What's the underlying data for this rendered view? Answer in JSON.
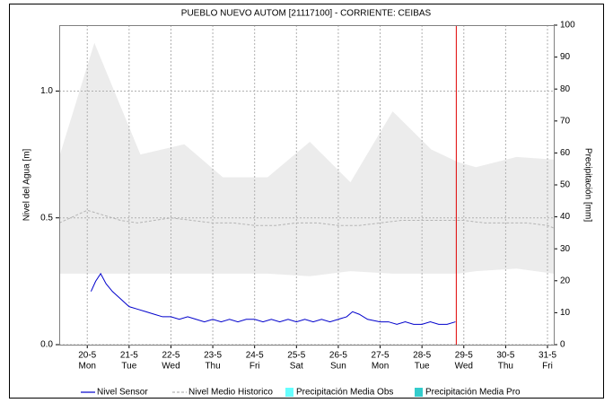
{
  "chart_data": {
    "type": "line",
    "title": "PUEBLO NUEVO AUTOM [21117100] - CORRIENTE: CEIBAS",
    "ylabel": "Nivel del Agua [m]",
    "y2label": "Precipitación [mm]",
    "xlim": [
      19.33,
      31.15
    ],
    "xticks": [
      {
        "value": 20,
        "label": "20-5"
      },
      {
        "value": 21,
        "label": "21-5"
      },
      {
        "value": 22,
        "label": "22-5"
      },
      {
        "value": 23,
        "label": "23-5"
      },
      {
        "value": 24,
        "label": "24-5"
      },
      {
        "value": 25,
        "label": "25-5"
      },
      {
        "value": 26,
        "label": "26-5"
      },
      {
        "value": 27,
        "label": "27-5"
      },
      {
        "value": 28,
        "label": "28-5"
      },
      {
        "value": 29,
        "label": "29-5"
      },
      {
        "value": 30,
        "label": "30-5"
      },
      {
        "value": 31,
        "label": "31-5"
      }
    ],
    "weekdays": [
      "Mon",
      "Tue",
      "Wed",
      "Thu",
      "Fri",
      "Sat",
      "Sun",
      "Mon",
      "Tue",
      "Wed",
      "Thu",
      "Fri"
    ],
    "ylim": [
      0,
      1.26
    ],
    "yticks": [
      {
        "value": 0,
        "label": "0.0"
      },
      {
        "value": 0.5,
        "label": "0.5"
      },
      {
        "value": 1,
        "label": "1.0"
      }
    ],
    "y2lim": [
      0,
      100
    ],
    "y2ticks": [
      0,
      10,
      20,
      30,
      40,
      50,
      60,
      70,
      80,
      90,
      100
    ],
    "grid": true,
    "vline": {
      "x": 28.82,
      "color": "#e00000"
    },
    "band": {
      "color": "#ececec",
      "x": [
        19.33,
        20.17,
        21.27,
        22.32,
        23.24,
        24.31,
        25.32,
        26.29,
        27.3,
        28.22,
        28.86,
        29.29,
        30.26,
        31.15
      ],
      "upper": [
        0.74,
        1.19,
        0.75,
        0.79,
        0.66,
        0.66,
        0.8,
        0.64,
        0.92,
        0.77,
        0.72,
        0.7,
        0.74,
        0.73
      ],
      "lower": [
        0.28,
        0.28,
        0.28,
        0.28,
        0.28,
        0.28,
        0.27,
        0.29,
        0.28,
        0.28,
        0.28,
        0.29,
        0.3,
        0.28
      ]
    },
    "series": [
      {
        "name": "Nivel Sensor",
        "color": "#0000cc",
        "style": "solid",
        "x": [
          20.09,
          20.2,
          20.32,
          20.45,
          20.6,
          20.8,
          21.0,
          21.2,
          21.4,
          21.6,
          21.8,
          22.0,
          22.2,
          22.4,
          22.6,
          22.8,
          23.0,
          23.2,
          23.4,
          23.6,
          23.8,
          24.0,
          24.2,
          24.4,
          24.6,
          24.8,
          25.0,
          25.2,
          25.4,
          25.6,
          25.8,
          26.0,
          26.2,
          26.34,
          26.5,
          26.7,
          27.0,
          27.2,
          27.4,
          27.6,
          27.8,
          28.0,
          28.2,
          28.4,
          28.6,
          28.8
        ],
        "values": [
          0.21,
          0.25,
          0.28,
          0.24,
          0.21,
          0.18,
          0.15,
          0.14,
          0.13,
          0.12,
          0.11,
          0.11,
          0.1,
          0.11,
          0.1,
          0.09,
          0.1,
          0.09,
          0.1,
          0.09,
          0.1,
          0.1,
          0.09,
          0.1,
          0.09,
          0.1,
          0.09,
          0.1,
          0.09,
          0.1,
          0.09,
          0.1,
          0.11,
          0.13,
          0.12,
          0.1,
          0.09,
          0.09,
          0.08,
          0.09,
          0.08,
          0.08,
          0.09,
          0.08,
          0.08,
          0.09
        ]
      },
      {
        "name": "Nivel Medio Historico",
        "color": "#b4b4b4",
        "style": "dashed",
        "x": [
          19.33,
          19.6,
          20,
          20.4,
          20.8,
          21.2,
          21.6,
          22,
          22.5,
          23,
          23.5,
          24,
          24.5,
          25,
          25.5,
          26,
          26.5,
          27,
          27.5,
          28,
          28.5,
          29,
          29.5,
          30,
          30.5,
          31,
          31.15
        ],
        "values": [
          0.48,
          0.5,
          0.53,
          0.51,
          0.49,
          0.48,
          0.49,
          0.5,
          0.49,
          0.48,
          0.48,
          0.47,
          0.47,
          0.48,
          0.48,
          0.47,
          0.47,
          0.48,
          0.49,
          0.49,
          0.49,
          0.49,
          0.48,
          0.48,
          0.48,
          0.47,
          0.46
        ]
      },
      {
        "name": "Precipitación Media Obs",
        "color": "#66ffff",
        "style": "box",
        "axis": "y2",
        "x": [],
        "values": []
      },
      {
        "name": "Precipitación Media Pro",
        "color": "#33cccc",
        "style": "box",
        "axis": "y2",
        "x": [],
        "values": []
      }
    ]
  }
}
